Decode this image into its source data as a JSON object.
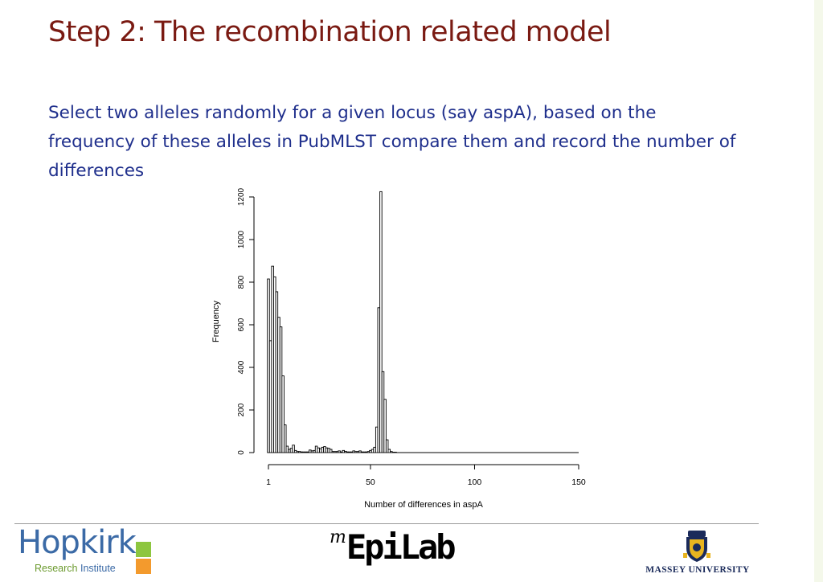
{
  "slide": {
    "title": "Step 2: The recombination related model",
    "body": "Select two alleles randomly for a given locus (say aspA), based on the frequency of these alleles in PubMLST compare them and record the number of differences"
  },
  "footer": {
    "hopkirk_name": "Hopkirk",
    "hopkirk_research": "Research",
    "hopkirk_institute": "Institute",
    "epilab_superscript": "m",
    "epilab_name": "EpiLab",
    "massey_name": "MASSEY UNIVERSITY"
  },
  "colors": {
    "title": "#7a1a12",
    "body_text": "#1f2f8c",
    "hopkirk_blue": "#3b6aa6",
    "hopkirk_green": "#8dc63f",
    "hopkirk_orange": "#f39a2d"
  },
  "chart_data": {
    "type": "bar",
    "subtype": "histogram",
    "title": "",
    "xlabel": "Number of differences in aspA",
    "ylabel": "Frequency",
    "xlim": [
      1,
      150
    ],
    "ylim": [
      0,
      1200
    ],
    "x_ticks": [
      1,
      50,
      100,
      150
    ],
    "y_ticks": [
      0,
      200,
      400,
      600,
      800,
      1000,
      1200
    ],
    "bin_width": 1,
    "grid": false,
    "legend": "none",
    "x": [
      1,
      2,
      3,
      4,
      5,
      6,
      7,
      8,
      9,
      10,
      11,
      12,
      13,
      14,
      15,
      16,
      17,
      18,
      19,
      20,
      21,
      22,
      23,
      24,
      25,
      26,
      27,
      28,
      29,
      30,
      31,
      32,
      33,
      34,
      35,
      36,
      37,
      38,
      39,
      40,
      41,
      42,
      43,
      44,
      45,
      46,
      47,
      48,
      49,
      50,
      51,
      52,
      53,
      54,
      55,
      56,
      57,
      58,
      59,
      60,
      61,
      62
    ],
    "values": [
      815,
      525,
      875,
      825,
      755,
      635,
      590,
      360,
      130,
      30,
      15,
      20,
      35,
      10,
      5,
      5,
      3,
      3,
      3,
      3,
      12,
      8,
      10,
      30,
      22,
      18,
      25,
      28,
      22,
      20,
      15,
      5,
      5,
      5,
      8,
      3,
      10,
      6,
      3,
      3,
      3,
      8,
      5,
      5,
      8,
      3,
      3,
      3,
      5,
      10,
      15,
      25,
      120,
      680,
      1225,
      380,
      250,
      60,
      15,
      5,
      2,
      2
    ]
  }
}
